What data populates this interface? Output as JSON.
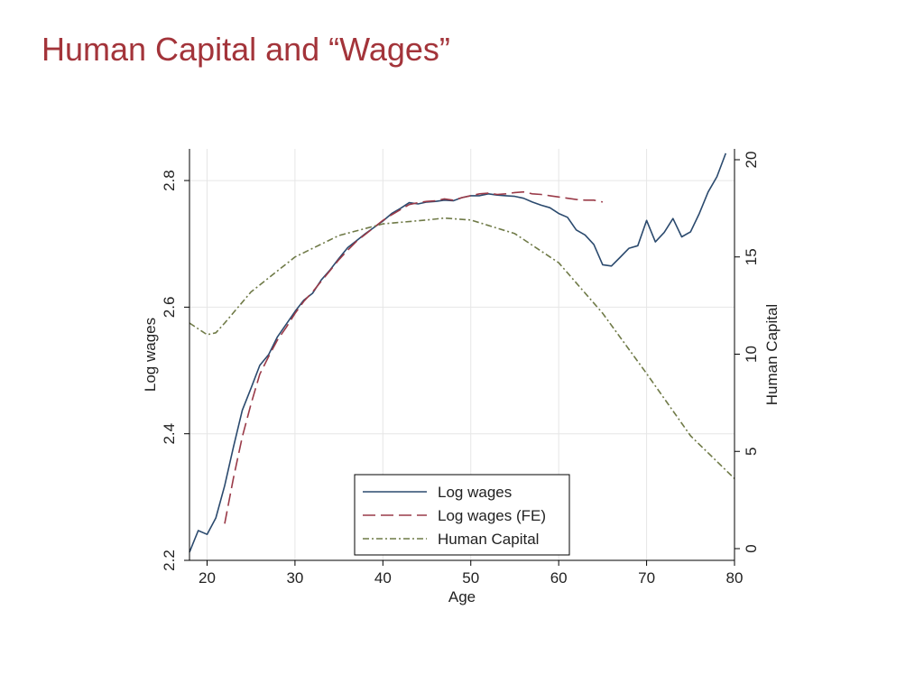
{
  "slide": {
    "title": "Human Capital and “Wages”"
  },
  "colors": {
    "title": "#a3343a",
    "log_wages": "#2b4a6e",
    "log_wages_fe": "#9a3a48",
    "human_capital": "#6f7a47",
    "grid": "#e6e6e6",
    "axis": "#000000"
  },
  "chart_data": {
    "type": "line",
    "title": "",
    "xlabel": "Age",
    "ylabel": "Log wages",
    "ylabel_right": "Human Capital",
    "xlim": [
      18,
      80
    ],
    "ylim": [
      2.2,
      2.85
    ],
    "ylim_right": [
      0,
      20
    ],
    "xticks": [
      20,
      30,
      40,
      50,
      60,
      70,
      80
    ],
    "yticks": [
      2.2,
      2.4,
      2.6,
      2.8
    ],
    "yticks_right": [
      0,
      5,
      10,
      15,
      20
    ],
    "grid": true,
    "legend": {
      "position": "lower-center",
      "entries": [
        "Log wages",
        "Log wages (FE)",
        "Human Capital"
      ]
    },
    "series": [
      {
        "name": "Log wages",
        "axis": "left",
        "style": "solid",
        "x": [
          18,
          19,
          20,
          21,
          22,
          23,
          24,
          25,
          26,
          27,
          28,
          29,
          30,
          31,
          32,
          33,
          34,
          35,
          36,
          37,
          38,
          39,
          40,
          41,
          42,
          43,
          44,
          45,
          46,
          47,
          48,
          49,
          50,
          51,
          52,
          53,
          54,
          55,
          56,
          57,
          58,
          59,
          60,
          61,
          62,
          63,
          64,
          65,
          66,
          67,
          68,
          69,
          70,
          71,
          72,
          73,
          74,
          75,
          76,
          77,
          78,
          79
        ],
        "values": [
          2.213,
          2.247,
          2.241,
          2.267,
          2.318,
          2.379,
          2.437,
          2.472,
          2.508,
          2.525,
          2.553,
          2.573,
          2.593,
          2.611,
          2.622,
          2.643,
          2.659,
          2.677,
          2.694,
          2.705,
          2.716,
          2.726,
          2.736,
          2.748,
          2.756,
          2.765,
          2.763,
          2.766,
          2.767,
          2.769,
          2.768,
          2.773,
          2.776,
          2.776,
          2.779,
          2.777,
          2.776,
          2.775,
          2.772,
          2.766,
          2.761,
          2.757,
          2.748,
          2.742,
          2.722,
          2.714,
          2.699,
          2.667,
          2.665,
          2.679,
          2.693,
          2.697,
          2.737,
          2.703,
          2.718,
          2.74,
          2.711,
          2.719,
          2.748,
          2.782,
          2.806,
          2.843
        ]
      },
      {
        "name": "Log wages (FE)",
        "axis": "left",
        "style": "dashed",
        "x": [
          22,
          23,
          24,
          25,
          26,
          27,
          28,
          29,
          30,
          31,
          32,
          33,
          34,
          35,
          36,
          37,
          38,
          39,
          40,
          41,
          42,
          43,
          44,
          45,
          46,
          47,
          48,
          49,
          50,
          51,
          52,
          53,
          54,
          55,
          56,
          57,
          58,
          59,
          60,
          61,
          62,
          63,
          64,
          65
        ],
        "values": [
          2.258,
          2.33,
          2.395,
          2.447,
          2.494,
          2.522,
          2.548,
          2.568,
          2.59,
          2.609,
          2.624,
          2.641,
          2.658,
          2.675,
          2.69,
          2.704,
          2.715,
          2.726,
          2.737,
          2.746,
          2.754,
          2.762,
          2.765,
          2.767,
          2.768,
          2.771,
          2.769,
          2.773,
          2.776,
          2.779,
          2.78,
          2.778,
          2.779,
          2.781,
          2.782,
          2.779,
          2.778,
          2.776,
          2.774,
          2.772,
          2.77,
          2.769,
          2.769,
          2.766
        ]
      },
      {
        "name": "Human Capital",
        "axis": "right",
        "style": "dashdot",
        "x": [
          18,
          20,
          21,
          22,
          25,
          30,
          35,
          40,
          45,
          47,
          50,
          55,
          60,
          65,
          70,
          75,
          80
        ],
        "values": [
          11.6,
          11.0,
          11.1,
          11.6,
          13.2,
          15.0,
          16.1,
          16.7,
          16.9,
          17.0,
          16.9,
          16.2,
          14.7,
          12.1,
          9.0,
          5.8,
          3.6
        ]
      }
    ]
  }
}
